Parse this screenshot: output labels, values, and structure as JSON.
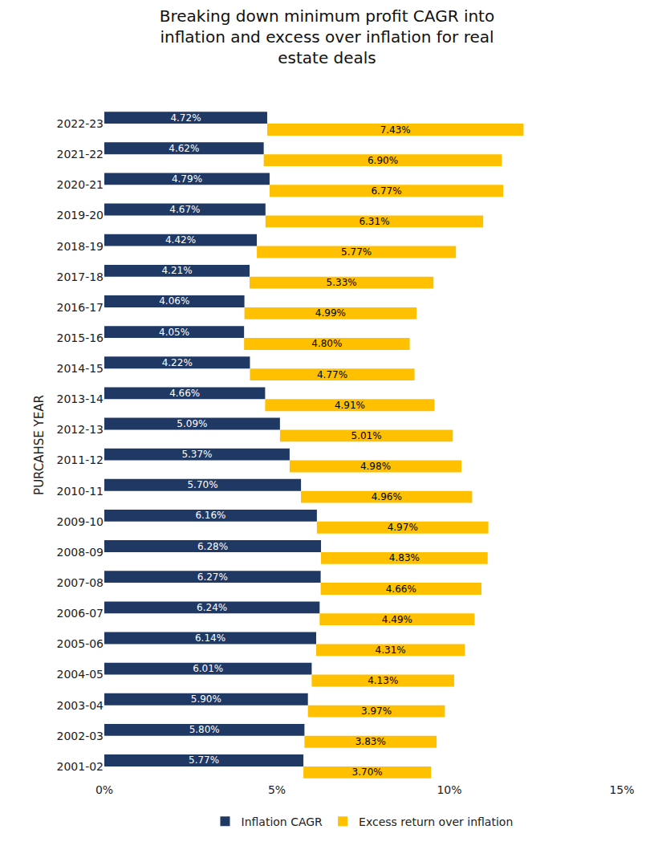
{
  "chart_data": {
    "type": "bar",
    "title": "Breaking down minimum profit CAGR into inflation and excess over inflation for real estate deals",
    "y_label": "PURCAHSE YEAR",
    "orientation": "horizontal",
    "stacked": true,
    "data_labels": true,
    "grid": false,
    "legend": "bottom",
    "categories": [
      "2022-23",
      "2021-22",
      "2020-21",
      "2019-20",
      "2018-19",
      "2017-18",
      "2016-17",
      "2015-16",
      "2014-15",
      "2013-14",
      "2012-13",
      "2011-12",
      "2010-11",
      "2009-10",
      "2008-09",
      "2007-08",
      "2006-07",
      "2005-06",
      "2004-05",
      "2003-04",
      "2002-03",
      "2001-02"
    ],
    "series": [
      {
        "name": "Inflation CAGR",
        "color": "#1f3864",
        "values": [
          4.72,
          4.62,
          4.79,
          4.67,
          4.42,
          4.21,
          4.06,
          4.05,
          4.22,
          4.66,
          5.09,
          5.37,
          5.7,
          6.16,
          6.28,
          6.27,
          6.24,
          6.14,
          6.01,
          5.9,
          5.8,
          5.77
        ],
        "value_labels": [
          "4.72%",
          "4.62%",
          "4.79%",
          "4.67%",
          "4.42%",
          "4.21%",
          "4.06%",
          "4.05%",
          "4.22%",
          "4.66%",
          "5.09%",
          "5.37%",
          "5.70%",
          "6.16%",
          "6.28%",
          "6.27%",
          "6.24%",
          "6.14%",
          "6.01%",
          "5.90%",
          "5.80%",
          "5.77%"
        ]
      },
      {
        "name": "Excess return over inflation",
        "color": "#ffc000",
        "values": [
          7.43,
          6.9,
          6.77,
          6.31,
          5.77,
          5.33,
          4.99,
          4.8,
          4.77,
          4.91,
          5.01,
          4.98,
          4.96,
          4.97,
          4.83,
          4.66,
          4.49,
          4.31,
          4.13,
          3.97,
          3.83,
          3.7
        ],
        "value_labels": [
          "7.43%",
          "6.90%",
          "6.77%",
          "6.31%",
          "5.77%",
          "5.33%",
          "4.99%",
          "4.80%",
          "4.77%",
          "4.91%",
          "5.01%",
          "4.98%",
          "4.96%",
          "4.97%",
          "4.83%",
          "4.66%",
          "4.49%",
          "4.31%",
          "4.13%",
          "3.97%",
          "3.83%",
          "3.70%"
        ]
      }
    ],
    "xlim": [
      0,
      15
    ],
    "xticks": [
      {
        "value": 0,
        "label": "0%"
      },
      {
        "value": 5,
        "label": "5%"
      },
      {
        "value": 10,
        "label": "10%"
      },
      {
        "value": 15,
        "label": "15%"
      }
    ]
  }
}
